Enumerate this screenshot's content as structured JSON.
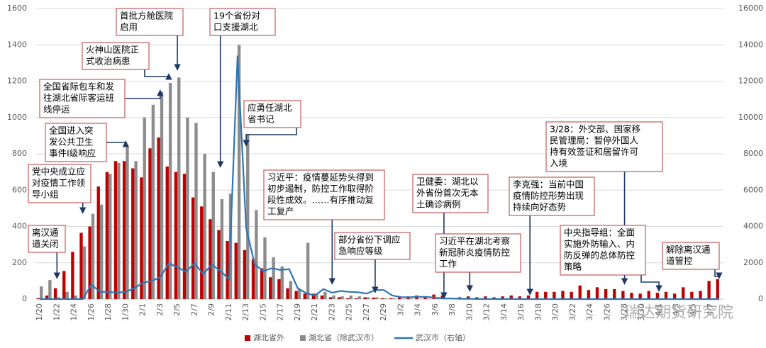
{
  "chart_data": {
    "type": "bar-line",
    "categories": [
      "1/20",
      null,
      "1/22",
      null,
      "1/24",
      null,
      "1/26",
      null,
      "1/28",
      null,
      "1/30",
      null,
      "2/1",
      null,
      "2/3",
      null,
      "2/5",
      null,
      "2/7",
      null,
      "2/9",
      null,
      "2/11",
      null,
      "2/13",
      null,
      "2/15",
      null,
      "2/17",
      null,
      "2/19",
      null,
      "2/21",
      null,
      "2/23",
      null,
      "2/25",
      null,
      "2/27",
      null,
      "2/29",
      null,
      "3/2",
      null,
      "3/4",
      null,
      "3/6",
      null,
      "3/8",
      null,
      "3/10",
      null,
      "3/12",
      null,
      "3/14",
      null,
      "3/16",
      null,
      "3/18",
      null,
      "3/20",
      null,
      "3/22",
      null,
      "3/24",
      null,
      "3/26",
      null,
      "3/28",
      null,
      "3/30",
      null,
      "4/1",
      null,
      "4/3",
      null,
      "4/5",
      null,
      "4/7",
      null
    ],
    "series": [
      {
        "name": "湖北省外",
        "color": "#c00000",
        "kind": "bar",
        "values": [
          5,
          20,
          60,
          155,
          260,
          365,
          400,
          620,
          700,
          760,
          760,
          720,
          670,
          830,
          890,
          730,
          700,
          690,
          560,
          510,
          440,
          380,
          320,
          310,
          270,
          220,
          170,
          120,
          110,
          60,
          45,
          30,
          30,
          20,
          10,
          10,
          5,
          5,
          10,
          8,
          5,
          5,
          10,
          15,
          20,
          15,
          25,
          20,
          5,
          10,
          15,
          10,
          15,
          10,
          15,
          20,
          15,
          20,
          40,
          40,
          40,
          45,
          40,
          75,
          50,
          65,
          55,
          55,
          45,
          35,
          30,
          45,
          35,
          40,
          30,
          65,
          40,
          45,
          100,
          110
        ]
      },
      {
        "name": "湖北省（除武汉市）",
        "color": "#8c8c8c",
        "kind": "bar",
        "values": [
          70,
          105,
          10,
          40,
          20,
          290,
          470,
          520,
          690,
          750,
          840,
          760,
          1000,
          1070,
          1140,
          1190,
          1220,
          1000,
          970,
          800,
          700,
          550,
          580,
          1400,
          910,
          490,
          340,
          230,
          180,
          100,
          55,
          310,
          30,
          40,
          20,
          15,
          20,
          15,
          10,
          10,
          5,
          5,
          3,
          3,
          2,
          2,
          1,
          0,
          0,
          0,
          0,
          0,
          0,
          0,
          0,
          0,
          0,
          0,
          0,
          0,
          0,
          0,
          0,
          0,
          0,
          0,
          0,
          0,
          0,
          0,
          0,
          0,
          0,
          0,
          0,
          0,
          0,
          0,
          0,
          0
        ]
      },
      {
        "name": "武汉市（右轴）",
        "color": "#2e75b6",
        "kind": "line",
        "axis": "y2",
        "values": [
          0,
          0,
          0,
          0,
          0,
          0,
          800,
          400,
          400,
          350,
          400,
          600,
          900,
          1000,
          1200,
          1960,
          1760,
          1500,
          1980,
          1380,
          1900,
          1550,
          1100,
          13400,
          3900,
          1900,
          1550,
          1700,
          1600,
          1650,
          600,
          320,
          200,
          550,
          350,
          450,
          400,
          380,
          300,
          500,
          500,
          200,
          110,
          100,
          130,
          120,
          75,
          40,
          35,
          15,
          15,
          5,
          5,
          5,
          5,
          5,
          0,
          0,
          0,
          0,
          0,
          0,
          0,
          0,
          0,
          0,
          0,
          0,
          0,
          0,
          0,
          0,
          0,
          0,
          0,
          0,
          0,
          0,
          0,
          0
        ]
      }
    ],
    "ylim": [
      0,
      1600
    ],
    "yticks": [
      0,
      200,
      400,
      600,
      800,
      1000,
      1200,
      1400,
      1600
    ],
    "y2lim": [
      0,
      16000
    ],
    "y2ticks": [
      0,
      2000,
      4000,
      6000,
      8000,
      10000,
      12000,
      14000,
      16000
    ],
    "legend": "bottom",
    "annotations": [
      {
        "lines": [
          "离汉通",
          "道关闭"
        ]
      },
      {
        "lines": [
          "党中央成立应",
          "对疫情工作领",
          "导小组"
        ]
      },
      {
        "lines": [
          "全国进入突",
          "发公共卫生",
          "事件I级响应"
        ]
      },
      {
        "lines": [
          "全国省际包车和发",
          "往湖北省际客运班",
          "线停运"
        ]
      },
      {
        "lines": [
          "火神山医院正",
          "式收治病患"
        ]
      },
      {
        "lines": [
          "首批方舱医院",
          "启用"
        ]
      },
      {
        "lines": [
          "19个省份对",
          "口支援湖北"
        ]
      },
      {
        "lines": [
          "应勇任湖北",
          "省书记"
        ]
      },
      {
        "lines": [
          "习近平：疫情蔓延势头得到",
          "初步遏制，防控工作取得阶",
          "段性成效。……有序推动复",
          "工复产"
        ]
      },
      {
        "lines": [
          "部分省份下调应",
          "急响应等级"
        ]
      },
      {
        "lines": [
          "卫健委：湖北以",
          "外省份首次无本",
          "土确诊病例"
        ]
      },
      {
        "lines": [
          "习近平在湖北考察",
          "新冠肺炎疫情防控",
          "工作"
        ]
      },
      {
        "lines": [
          "李克强：当前中国",
          "疫情防控形势出现",
          "持续向好态势"
        ]
      },
      {
        "lines": [
          "3/28：外交部、国家移",
          "民管理局：暂停外国人",
          "持有效签证和居留许可",
          "入境"
        ]
      },
      {
        "lines": [
          "中央指导组：全面",
          "实施外防输入、内",
          "防反弹的总体防控",
          "策略"
        ]
      },
      {
        "lines": [
          "解除离汉通",
          "道管控"
        ]
      }
    ],
    "watermark": "瑞达期货研究院"
  }
}
